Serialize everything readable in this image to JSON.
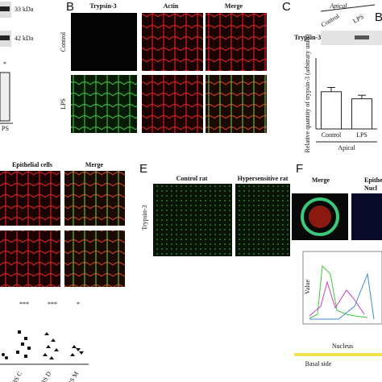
{
  "panel_a": {
    "band_1": "33 kDa",
    "band_2": "42 kDa",
    "significance": "*",
    "category": "PS"
  },
  "panel_b": {
    "label": "B",
    "columns": [
      "Trypsin-3",
      "Actin",
      "Merge"
    ],
    "rows": [
      "Control",
      "LPS"
    ]
  },
  "panel_c": {
    "label": "C",
    "group": "Apical",
    "lanes": [
      "Control",
      "LPS"
    ],
    "next_label": "B",
    "blot": "Trypsin-3",
    "chart_data": {
      "type": "bar",
      "y_label": "Relative quantity of trypsin-3 (arbitrary units)",
      "categories": [
        "Control",
        "LPS"
      ],
      "values": [
        1.05,
        0.85
      ],
      "errors": [
        0.12,
        0.1
      ],
      "ylim": [
        0,
        2
      ],
      "x_group": "Apical"
    }
  },
  "panel_d": {
    "columns": [
      "Epithelial cells",
      "Merge"
    ],
    "stars": [
      "***",
      "***",
      "*"
    ],
    "groups": [
      "IBS C",
      "IBS D",
      "IBS M"
    ]
  },
  "panel_e": {
    "label": "E",
    "columns": [
      "Control rat",
      "Hypersensitive rat"
    ],
    "row": "Trypsin-3"
  },
  "panel_f": {
    "label": "F",
    "columns": [
      "Merge",
      "Epithelia",
      "Nucl"
    ],
    "x_label": "Nucleus",
    "y_label": "Value",
    "side": "Basal side"
  }
}
